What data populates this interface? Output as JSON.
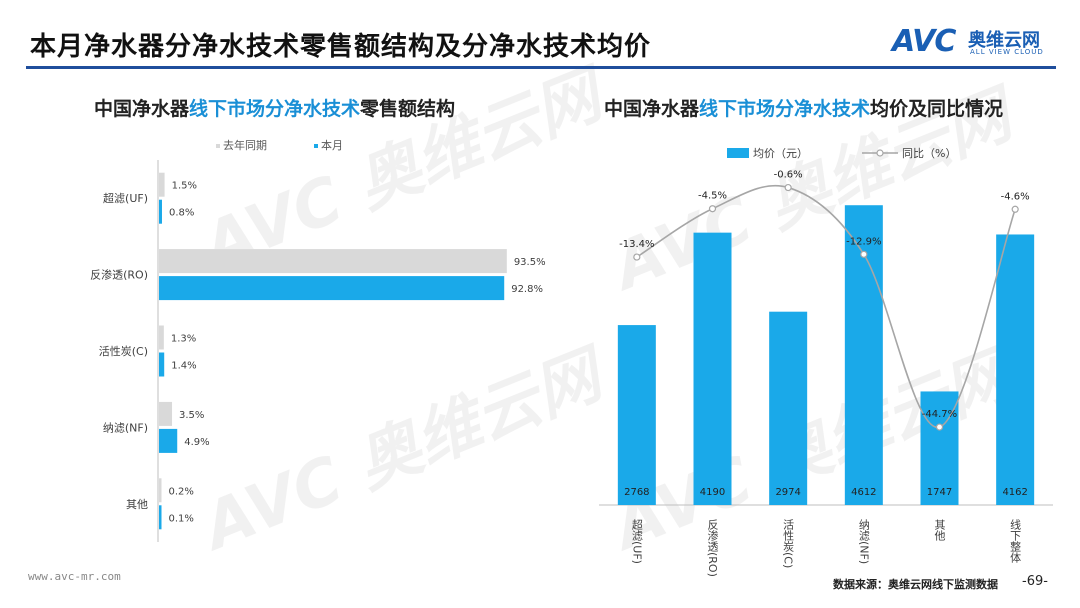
{
  "header": {
    "title": "本月净水器分净水技术零售额结构及分净水技术均价",
    "logo_mark": "AVC",
    "logo_cn": "奥维云网",
    "logo_en": "ALL VIEW CLOUD"
  },
  "colors": {
    "accent": "#1a5fb4",
    "rule": "#1f4e9c",
    "bar_current": "#1aa9e9",
    "bar_last": "#d9d9d9",
    "line": "#a6a6a6",
    "highlight": "#1a8fd6"
  },
  "footer": {
    "url": "www.avc-mr.com",
    "source": "数据来源：奥维云网线下监测数据",
    "page": "-69-"
  },
  "chart_data": [
    {
      "type": "bar",
      "orientation": "horizontal",
      "title_parts": [
        "中国净水器",
        "线下市场分净水技术",
        "零售额结构"
      ],
      "categories": [
        "超滤(UF)",
        "反渗透(RO)",
        "活性炭(C)",
        "纳滤(NF)",
        "其他"
      ],
      "series": [
        {
          "name": "去年同期",
          "values": [
            1.5,
            93.5,
            1.3,
            3.5,
            0.2
          ],
          "labels": [
            "1.5%",
            "93.5%",
            "1.3%",
            "3.5%",
            "0.2%"
          ]
        },
        {
          "name": "本月",
          "values": [
            0.8,
            92.8,
            1.4,
            4.9,
            0.1
          ],
          "labels": [
            "0.8%",
            "92.8%",
            "1.4%",
            "4.9%",
            "0.1%"
          ]
        }
      ],
      "xlim": [
        0,
        100
      ],
      "legend": "top-left",
      "grid": false
    },
    {
      "type": "bar+line",
      "title_parts": [
        "中国净水器",
        "线下市场分净水技术",
        "均价及同比情况"
      ],
      "categories": [
        "超滤(UF)",
        "反渗透(RO)",
        "活性炭(C)",
        "纳滤(NF)",
        "其他",
        "线下整体"
      ],
      "bar_series": {
        "name": "均价（元）",
        "values": [
          2768,
          4190,
          2974,
          4612,
          1747,
          4162
        ],
        "labels": [
          "2768",
          "4190",
          "2974",
          "4612",
          "1747",
          "4162"
        ]
      },
      "line_series": {
        "name": "同比（%）",
        "values": [
          -13.4,
          -4.5,
          -0.6,
          -12.9,
          -44.7,
          -4.6
        ],
        "labels": [
          "-13.4%",
          "-4.5%",
          "-0.6%",
          "-12.9%",
          "-44.7%",
          "-4.6%"
        ]
      },
      "ylim_bar": [
        0,
        5000
      ],
      "ylim_line": [
        -55,
        3
      ],
      "legend": "top",
      "grid": false
    }
  ]
}
